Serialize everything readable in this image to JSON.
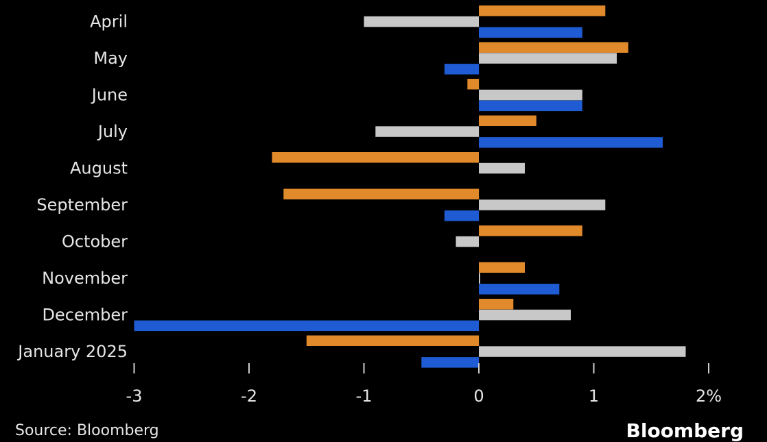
{
  "chart_data": {
    "type": "bar",
    "orientation": "horizontal",
    "categories": [
      "April",
      "May",
      "June",
      "July",
      "August",
      "September",
      "October",
      "November",
      "December",
      "January 2025"
    ],
    "series": [
      {
        "values": [
          1.1,
          1.3,
          -0.1,
          0.5,
          -1.8,
          -1.7,
          0.9,
          0.4,
          0.3,
          -1.5
        ]
      },
      {
        "values": [
          -1.0,
          1.2,
          0.9,
          -0.9,
          0.4,
          1.1,
          -0.2,
          0.0,
          0.8,
          1.8
        ]
      },
      {
        "values": [
          0.9,
          -0.3,
          0.9,
          1.6,
          null,
          -0.3,
          null,
          0.7,
          -3.0,
          -0.5
        ]
      }
    ],
    "x_ticks": [
      -3,
      -2,
      -1,
      0,
      1,
      2
    ],
    "x_tick_labels": [
      "-3",
      "-2",
      "-1",
      "0",
      "1",
      "2%"
    ],
    "xlim": [
      -3,
      2
    ],
    "grid": false,
    "legend": "none"
  },
  "colors": {
    "series": [
      "#e08a2c",
      "#c8c8c8",
      "#1f5bd3"
    ],
    "background": "#000000",
    "text": "#e6e6e6"
  },
  "footer": {
    "source": "Source: Bloomberg",
    "brand": "Bloomberg"
  }
}
